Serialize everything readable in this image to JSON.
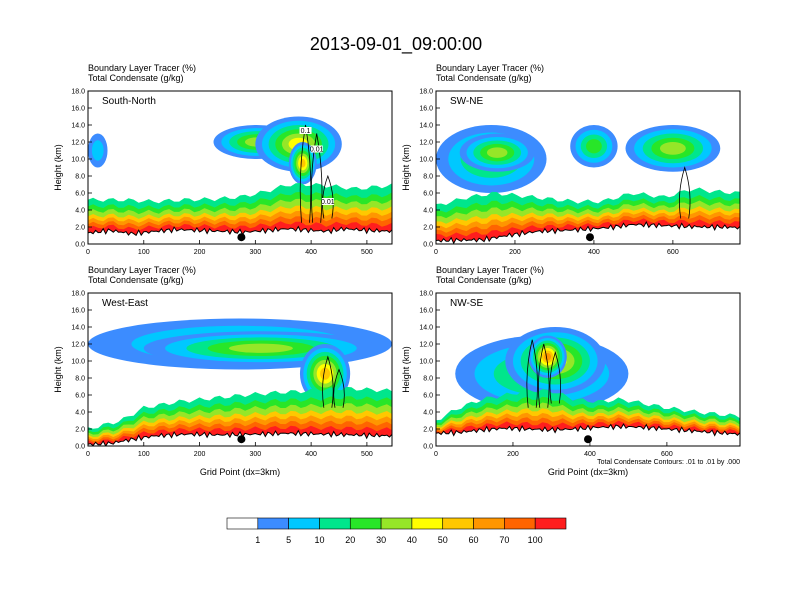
{
  "title": "2013-09-01_09:00:00",
  "footnote": "Total Condensate Contours: .01 to .01 by .000",
  "chart_data": [
    {
      "type": "heatmap",
      "panel": "South-North",
      "subtitle_line1": "Boundary Layer Tracer   (%)",
      "subtitle_line2": "Total Condensate   (g/kg)",
      "ylabel": "Height (km)",
      "xlabel": "",
      "xlim": [
        0,
        545
      ],
      "ylim": [
        0,
        18
      ],
      "xticks": [
        "0",
        "100",
        "200",
        "300",
        "400",
        "500"
      ],
      "yticks": [
        "0.0",
        "2.0",
        "4.0",
        "6.0",
        "8.0",
        "10.0",
        "12.0",
        "14.0",
        "16.0",
        "18.0"
      ],
      "marker_x": 275,
      "contour_labels": [
        "0.1",
        "0.01",
        "0.01"
      ],
      "terrain": [
        [
          0,
          1.3
        ],
        [
          40,
          1.6
        ],
        [
          80,
          1.2
        ],
        [
          120,
          1.5
        ],
        [
          160,
          1.7
        ],
        [
          200,
          1.6
        ],
        [
          240,
          1.5
        ],
        [
          280,
          1.4
        ],
        [
          320,
          1.6
        ],
        [
          360,
          1.8
        ],
        [
          380,
          1.7
        ],
        [
          400,
          1.6
        ],
        [
          430,
          1.5
        ],
        [
          460,
          1.8
        ],
        [
          500,
          1.6
        ],
        [
          545,
          1.5
        ]
      ],
      "pbl": [
        [
          0,
          5.2
        ],
        [
          60,
          5.2
        ],
        [
          120,
          5.0
        ],
        [
          170,
          5.2
        ],
        [
          230,
          5.3
        ],
        [
          280,
          5.6
        ],
        [
          320,
          6.2
        ],
        [
          360,
          7.0
        ],
        [
          400,
          7.0
        ],
        [
          440,
          6.8
        ],
        [
          480,
          6.5
        ],
        [
          545,
          6.9
        ]
      ],
      "clouds": [
        {
          "x": [
            0,
            35
          ],
          "y": [
            9,
            13
          ],
          "level": 5
        },
        {
          "x": [
            225,
            380
          ],
          "y": [
            10,
            14
          ],
          "level": 30
        },
        {
          "x": [
            300,
            455
          ],
          "y": [
            8.5,
            15
          ],
          "level": 40
        },
        {
          "x": [
            360,
            410
          ],
          "y": [
            7,
            12
          ],
          "level": 50
        }
      ],
      "columns": [
        [
          390,
          2.5,
          14
        ],
        [
          410,
          2.5,
          13
        ],
        [
          430,
          3,
          8
        ]
      ]
    },
    {
      "type": "heatmap",
      "panel": "SW-NE",
      "subtitle_line1": "Boundary Layer Tracer   (%)",
      "subtitle_line2": "Total Condensate   (g/kg)",
      "ylabel": "Height (km)",
      "xlabel": "",
      "xlim": [
        0,
        770
      ],
      "ylim": [
        0,
        18
      ],
      "xticks": [
        "0",
        "200",
        "400",
        "600"
      ],
      "yticks": [
        "0.0",
        "2.0",
        "4.0",
        "6.0",
        "8.0",
        "10.0",
        "12.0",
        "14.0",
        "16.0",
        "18.0"
      ],
      "marker_x": 390,
      "contour_labels": [],
      "terrain": [
        [
          0,
          0.4
        ],
        [
          120,
          0.5
        ],
        [
          180,
          1.0
        ],
        [
          260,
          1.5
        ],
        [
          320,
          1.6
        ],
        [
          400,
          1.8
        ],
        [
          450,
          2.0
        ],
        [
          500,
          2.3
        ],
        [
          560,
          2.2
        ],
        [
          620,
          2.1
        ],
        [
          680,
          2.0
        ],
        [
          740,
          2.0
        ],
        [
          770,
          1.9
        ]
      ],
      "pbl": [
        [
          0,
          4.5
        ],
        [
          80,
          5.5
        ],
        [
          150,
          6.0
        ],
        [
          250,
          5.5
        ],
        [
          350,
          5.0
        ],
        [
          420,
          5.0
        ],
        [
          500,
          6.0
        ],
        [
          580,
          5.5
        ],
        [
          650,
          6.5
        ],
        [
          700,
          6.2
        ],
        [
          770,
          6.0
        ]
      ],
      "clouds": [
        {
          "x": [
            0,
            280
          ],
          "y": [
            6,
            14
          ],
          "level": 20
        },
        {
          "x": [
            60,
            250
          ],
          "y": [
            8.5,
            13
          ],
          "level": 30
        },
        {
          "x": [
            340,
            460
          ],
          "y": [
            9,
            14
          ],
          "level": 20
        },
        {
          "x": [
            480,
            720
          ],
          "y": [
            8.5,
            14
          ],
          "level": 30
        }
      ],
      "columns": [
        [
          630,
          3,
          9
        ]
      ]
    },
    {
      "type": "heatmap",
      "panel": "West-East",
      "subtitle_line1": "Boundary Layer Tracer   (%)",
      "subtitle_line2": "Total Condensate   (g/kg)",
      "ylabel": "Height (km)",
      "xlabel": "Grid Point (dx=3km)",
      "xlim": [
        0,
        545
      ],
      "ylim": [
        0,
        18
      ],
      "xticks": [
        "0",
        "100",
        "200",
        "300",
        "400",
        "500"
      ],
      "yticks": [
        "0.0",
        "2.0",
        "4.0",
        "6.0",
        "8.0",
        "10.0",
        "12.0",
        "14.0",
        "16.0",
        "18.0"
      ],
      "marker_x": 275,
      "contour_labels": [],
      "terrain": [
        [
          0,
          0.2
        ],
        [
          40,
          0.3
        ],
        [
          80,
          0.8
        ],
        [
          120,
          1.2
        ],
        [
          180,
          1.4
        ],
        [
          240,
          1.3
        ],
        [
          300,
          1.4
        ],
        [
          360,
          1.5
        ],
        [
          420,
          1.4
        ],
        [
          480,
          1.3
        ],
        [
          545,
          1.2
        ]
      ],
      "pbl": [
        [
          0,
          2.0
        ],
        [
          60,
          3.0
        ],
        [
          100,
          4.5
        ],
        [
          160,
          5.2
        ],
        [
          220,
          5.6
        ],
        [
          280,
          6.0
        ],
        [
          340,
          6.3
        ],
        [
          400,
          6.5
        ],
        [
          460,
          6.8
        ],
        [
          545,
          6.5
        ]
      ],
      "clouds": [
        {
          "x": [
            0,
            545
          ],
          "y": [
            9,
            15
          ],
          "level": 10
        },
        {
          "x": [
            100,
            520
          ],
          "y": [
            9.5,
            13.5
          ],
          "level": 30
        },
        {
          "x": [
            380,
            470
          ],
          "y": [
            5,
            12
          ],
          "level": 50
        }
      ],
      "columns": [
        [
          430,
          4.5,
          10.5
        ],
        [
          450,
          4.5,
          9
        ]
      ]
    },
    {
      "type": "heatmap",
      "panel": "NW-SE",
      "subtitle_line1": "Boundary Layer Tracer   (%)",
      "subtitle_line2": "Total Condensate   (g/kg)",
      "ylabel": "Height (km)",
      "xlabel": "Grid Point (dx=3km)",
      "xlim": [
        0,
        790
      ],
      "ylim": [
        0,
        18
      ],
      "xticks": [
        "0",
        "200",
        "400",
        "600"
      ],
      "yticks": [
        "0.0",
        "2.0",
        "4.0",
        "6.0",
        "8.0",
        "10.0",
        "12.0",
        "14.0",
        "16.0",
        "18.0"
      ],
      "marker_x": 395,
      "contour_labels": [],
      "terrain": [
        [
          0,
          1.5
        ],
        [
          60,
          1.6
        ],
        [
          120,
          1.9
        ],
        [
          180,
          2.1
        ],
        [
          240,
          2.0
        ],
        [
          300,
          1.9
        ],
        [
          360,
          2.0
        ],
        [
          420,
          2.2
        ],
        [
          480,
          2.3
        ],
        [
          540,
          2.2
        ],
        [
          600,
          2.0
        ],
        [
          660,
          1.8
        ],
        [
          720,
          1.6
        ],
        [
          790,
          1.4
        ]
      ],
      "pbl": [
        [
          0,
          3.0
        ],
        [
          60,
          4.5
        ],
        [
          120,
          5.5
        ],
        [
          180,
          6.0
        ],
        [
          240,
          6.5
        ],
        [
          300,
          6.5
        ],
        [
          360,
          5.5
        ],
        [
          420,
          5.2
        ],
        [
          480,
          5.5
        ],
        [
          540,
          5.0
        ],
        [
          600,
          4.5
        ],
        [
          680,
          4.0
        ],
        [
          790,
          3.5
        ]
      ],
      "clouds": [
        {
          "x": [
            50,
            500
          ],
          "y": [
            4,
            13
          ],
          "level": 20
        },
        {
          "x": [
            180,
            440
          ],
          "y": [
            6,
            14
          ],
          "level": 40
        },
        {
          "x": [
            240,
            340
          ],
          "y": [
            8,
            13
          ],
          "level": 60
        }
      ],
      "columns": [
        [
          250,
          4.5,
          12.5
        ],
        [
          280,
          4.5,
          12
        ],
        [
          310,
          5,
          11
        ]
      ]
    }
  ],
  "colorbar": {
    "levels": [
      "1",
      "5",
      "10",
      "20",
      "30",
      "40",
      "50",
      "60",
      "70",
      "100"
    ],
    "colors": [
      "#ffffff",
      "#3c8cff",
      "#00c8ff",
      "#00e68c",
      "#28e628",
      "#96e628",
      "#ffff00",
      "#ffc800",
      "#ff9600",
      "#ff6400",
      "#ff1e1e"
    ]
  }
}
